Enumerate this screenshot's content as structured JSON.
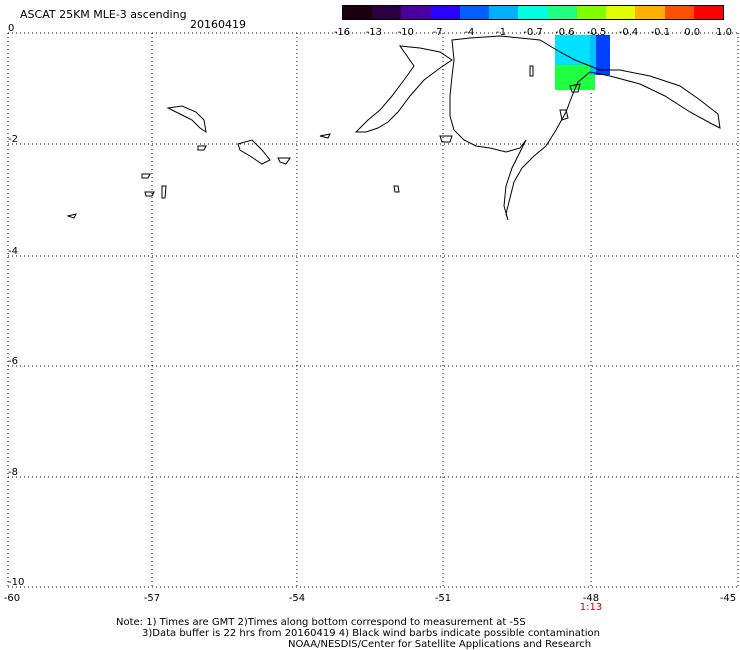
{
  "header": {
    "title": "ASCAT 25KM MLE-3 ascending",
    "date": "20160419"
  },
  "colorbar": {
    "ticks": [
      "-16",
      "-13",
      "-10",
      "-7",
      "-4",
      "-1",
      "-0.7",
      "-0.6",
      "-0.5",
      "-0.4",
      "-0.1",
      "0.0",
      "1.0"
    ],
    "colors": [
      "#1a0010",
      "#2a0040",
      "#4a00a0",
      "#2a00ff",
      "#0060ff",
      "#00b0ff",
      "#00ffe0",
      "#20ff80",
      "#80ff00",
      "#e0ff00",
      "#ffb000",
      "#ff5000",
      "#ff0000"
    ]
  },
  "map": {
    "y_axis_labels": [
      "0",
      "-2",
      "-4",
      "-6",
      "-8",
      "-10"
    ],
    "x_axis_labels": [
      "-60",
      "-57",
      "-54",
      "-51",
      "-48",
      "-45"
    ],
    "time_label": "1:13",
    "data_colors": {
      "blue": "#0040ff",
      "cyan": "#00e0ff",
      "green": "#20ff40",
      "teal": "#00c0ff"
    }
  },
  "footer": {
    "note_line1": "Note: 1) Times are GMT 2)Times along bottom correspond to measurement at -5S",
    "note_line2": "3)Data buffer is 22 hrs from 20160419 4) Black wind barbs indicate possible contamination",
    "note_line3": "NOAA/NESDIS/Center for Satellite Applications and Research"
  }
}
